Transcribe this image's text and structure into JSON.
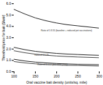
{
  "chart_data": {
    "type": "line",
    "x": [
      100,
      125,
      150,
      175,
      200,
      225,
      250,
      275,
      300
    ],
    "series": [
      {
        "color": "#222222",
        "values": [
          5.5,
          5.1,
          4.75,
          4.5,
          4.3,
          4.15,
          4.05,
          3.95,
          3.85
        ]
      },
      {
        "color": "#222222",
        "values": [
          2.15,
          1.95,
          1.8,
          1.7,
          1.62,
          1.56,
          1.52,
          1.48,
          1.45
        ]
      },
      {
        "color": "#444444",
        "values": [
          1.85,
          1.68,
          1.55,
          1.46,
          1.39,
          1.34,
          1.3,
          1.27,
          1.24
        ]
      },
      {
        "color": "#222222",
        "values": [
          1.1,
          0.95,
          0.85,
          0.78,
          0.73,
          0.69,
          0.66,
          0.64,
          0.62
        ]
      },
      {
        "color": "#444444",
        "values": [
          0.9,
          0.78,
          0.7,
          0.64,
          0.6,
          0.57,
          0.55,
          0.53,
          0.51
        ]
      }
    ],
    "xlabel": "Oral vaccine bait density (units/sq. mile)",
    "ylabel": "Threshold price for bait ($/unit)",
    "xlim": [
      100,
      300
    ],
    "ylim": [
      0,
      6
    ],
    "xticks": [
      100,
      150,
      200,
      250,
      300
    ],
    "yticks": [
      0,
      1,
      2,
      3,
      4,
      5,
      6
    ],
    "annotations": [
      {
        "text": "Ratio of 1:3.55 (baseline + reduced pet vaccinations)",
        "x": 163,
        "y": 3.55,
        "color": "#222222"
      },
      {
        "text": "Ratio of 1:1.25",
        "x": 148,
        "y": 1.42,
        "color": "#333333"
      },
      {
        "text": "Ratio of 1:1.17 (baseline (250))",
        "x": 155,
        "y": 0.58,
        "color": "#333333"
      }
    ]
  }
}
